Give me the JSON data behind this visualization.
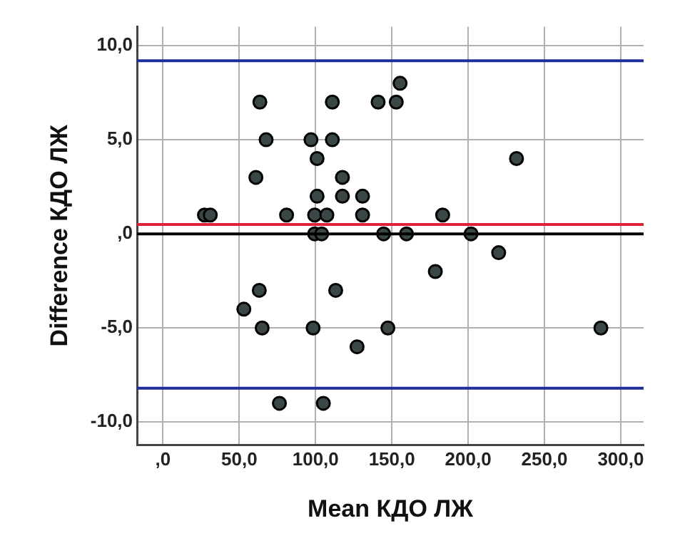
{
  "chart_data": {
    "type": "scatter",
    "xlabel": "Mean КДО ЛЖ",
    "ylabel": "Difference КДО ЛЖ",
    "x": [
      27.2,
      31,
      63.5,
      67.6,
      60.9,
      81,
      97,
      101,
      101,
      99.4,
      107.4,
      99.4,
      104,
      111,
      111,
      117.6,
      117.6,
      130.8,
      130.8,
      141,
      152.9,
      155.4,
      144.6,
      159.6,
      183.3,
      201.9,
      220,
      231.7,
      178.5,
      63.1,
      113.2,
      53,
      65,
      98.4,
      147.4,
      287,
      127.2,
      76.3,
      105.1
    ],
    "series": [
      {
        "color": "#3a4747",
        "values": [
          1,
          1,
          7,
          5,
          3,
          1,
          5,
          4,
          2,
          1,
          1,
          0,
          0,
          7,
          5,
          3,
          2,
          2,
          1,
          7,
          7,
          8,
          0,
          0,
          1,
          0,
          -1,
          4,
          -2,
          -3,
          -3,
          -4,
          -5,
          -5,
          -5,
          -5,
          -6,
          -9,
          -9
        ]
      }
    ],
    "marker": "circle",
    "grid": true,
    "legend": false,
    "xlim": [
      -17,
      315
    ],
    "xticks": [
      {
        "value": 0,
        "label": ",0"
      },
      {
        "value": 50,
        "label": "50,0"
      },
      {
        "value": 100,
        "label": "100,0"
      },
      {
        "value": 150,
        "label": "150,0"
      },
      {
        "value": 200,
        "label": "200,0"
      },
      {
        "value": 250,
        "label": "250,0"
      },
      {
        "value": 300,
        "label": "300,0"
      }
    ],
    "ylim": [
      -11.2,
      11
    ],
    "yticks": [
      {
        "value": -10,
        "label": "-10,0"
      },
      {
        "value": -5,
        "label": "-5,0"
      },
      {
        "value": 0,
        "label": ",0"
      },
      {
        "value": 5,
        "label": "5,0"
      },
      {
        "value": 10,
        "label": "10,0"
      }
    ],
    "ref_lines": [
      {
        "axis": "y",
        "value": 9.2,
        "color": "#1f2f9a"
      },
      {
        "axis": "y",
        "value": 0.5,
        "color": "#e0213a"
      },
      {
        "axis": "y",
        "value": 0,
        "color": "#000000"
      },
      {
        "axis": "y",
        "value": -8.2,
        "color": "#1f2f9a"
      }
    ]
  }
}
